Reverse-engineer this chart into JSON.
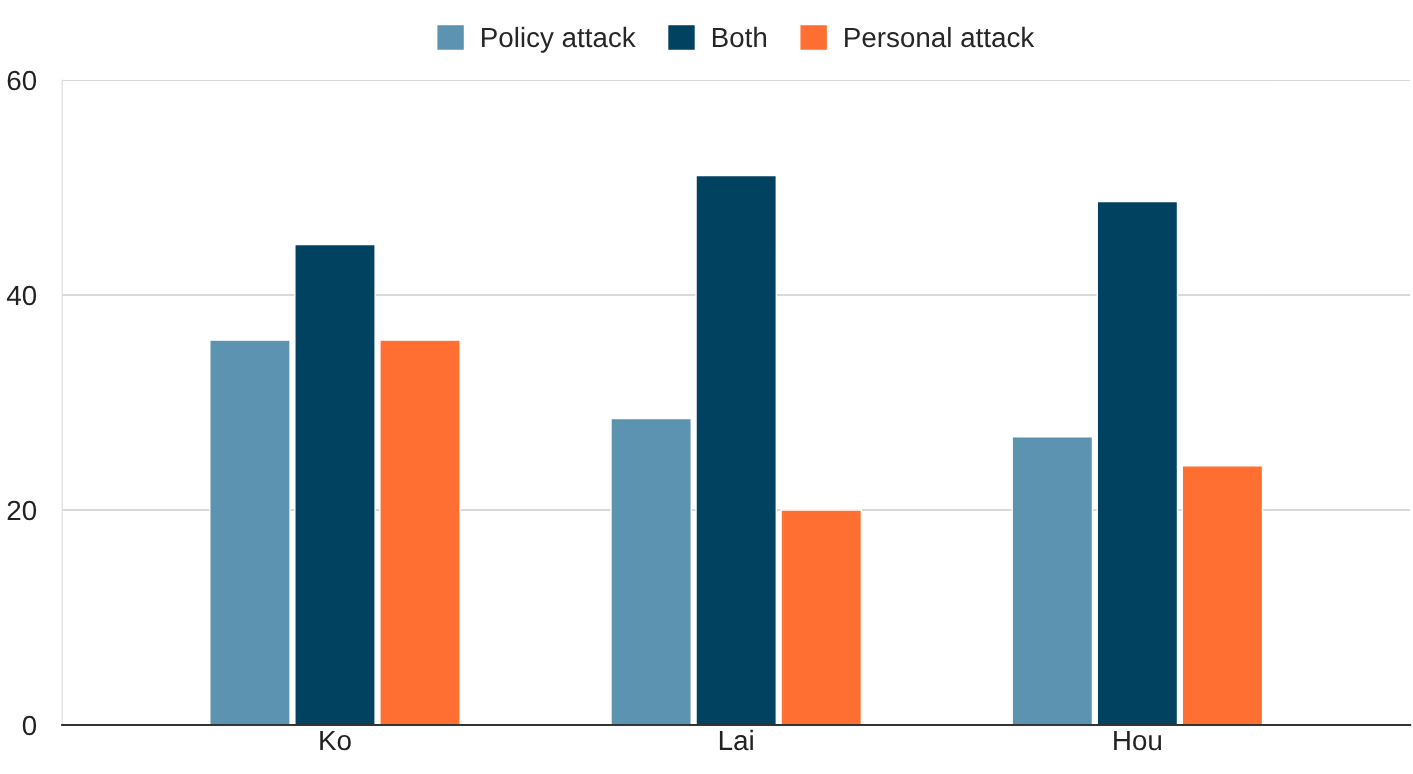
{
  "chart_data": {
    "type": "bar",
    "categories": [
      "Ko",
      "Lai",
      "Hou"
    ],
    "series": [
      {
        "name": "Policy attack",
        "color": "#5b93b0",
        "values": [
          35.8,
          28.5,
          26.8
        ]
      },
      {
        "name": "Both",
        "color": "#00425f",
        "values": [
          44.7,
          51.1,
          48.7
        ]
      },
      {
        "name": "Personal attack",
        "color": "#ff6f31",
        "values": [
          35.8,
          20.0,
          24.1
        ]
      }
    ],
    "ylim": [
      0,
      60
    ],
    "yticks": [
      0,
      20,
      40,
      60
    ],
    "grid": "y",
    "legend": "top"
  }
}
